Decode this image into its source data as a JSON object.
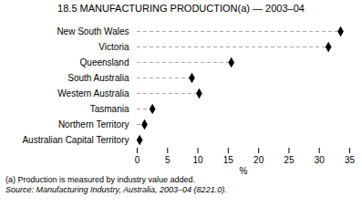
{
  "chart_data": {
    "type": "dot",
    "title": "18.5   MANUFACTURING PRODUCTION(a) — 2003–04",
    "categories": [
      "New South Wales",
      "Victoria",
      "Queensland",
      "South Australia",
      "Western Australia",
      "Tasmania",
      "Northern Territory",
      "Australian Capital Territory"
    ],
    "values": [
      33.5,
      31.5,
      15.5,
      9.0,
      10.2,
      2.5,
      1.2,
      0.4
    ],
    "orientation": "horizontal",
    "color": "black",
    "marker": "diamond",
    "line_style": "dashed",
    "xlabel": "%",
    "xlim": [
      0,
      35
    ],
    "xticks": [
      0,
      5,
      10,
      15,
      20,
      25,
      30,
      35
    ],
    "grid": false,
    "annotations": [
      "(a) Production is measured by industry value added.",
      "Source: Manufacturing Industry, Australia, 2003–04 (8221.0)."
    ]
  }
}
